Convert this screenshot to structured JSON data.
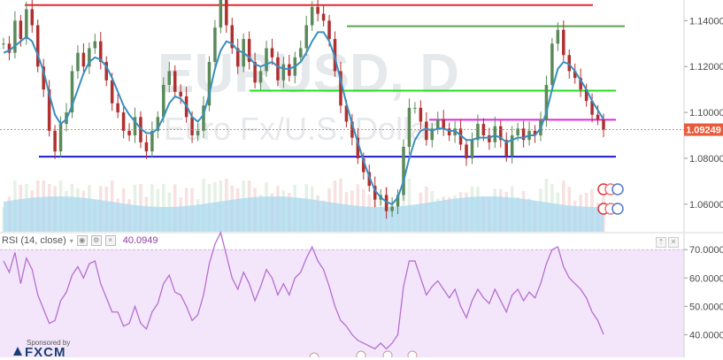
{
  "watermark": {
    "symbol": "EURUSD, D",
    "description": "Euro Fx/U.S. Dollar"
  },
  "colors": {
    "resistance_top": "#e8262c",
    "green_dark": "#5aa24e",
    "green_light": "#21e01e",
    "magenta": "#e02ae0",
    "support": "#1a1ad6",
    "ma_line": "#3a8fbf",
    "up_candle": "#5a8a5a",
    "down_candle": "#b03030",
    "volume_area": "#aad8ef",
    "rsi_line": "#b56fd0",
    "rsi_band": "#f3e6fb",
    "price_badge": "#e85a3a"
  },
  "price_axis": {
    "ticks": [
      "1.14000",
      "1.12000",
      "1.10000",
      "1.08000",
      "1.06000"
    ],
    "current_price": "1.09249"
  },
  "rsi_panel": {
    "label": "RSI (14, close)",
    "value": "40.0949",
    "ticks": [
      "70.0000",
      "60.0000",
      "50.0000",
      "40.0000"
    ]
  },
  "sponsor": {
    "label": "Sponsored by",
    "name": "FXCM"
  },
  "chart_data": {
    "type": "line",
    "title": "EURUSD, D",
    "subtitle": "Euro Fx/U.S. Dollar",
    "ylim": [
      1.048,
      1.149
    ],
    "horizontal_levels": [
      {
        "price": 1.1468,
        "color": "#e8262c"
      },
      {
        "price": 1.1376,
        "color": "#5aa24e"
      },
      {
        "price": 1.1095,
        "color": "#21e01e"
      },
      {
        "price": 1.0968,
        "color": "#e02ae0"
      },
      {
        "price": 1.0807,
        "color": "#1a1ad6"
      }
    ],
    "series": [
      {
        "values": [
          1.13,
          1.126,
          1.14,
          1.132,
          1.145,
          1.138,
          1.12,
          1.11,
          1.092,
          1.083,
          1.095,
          1.1,
          1.118,
          1.126,
          1.12,
          1.128,
          1.131,
          1.122,
          1.114,
          1.104,
          1.1,
          1.092,
          1.09,
          1.098,
          1.087,
          1.083,
          1.092,
          1.098,
          1.112,
          1.118,
          1.109,
          1.107,
          1.098,
          1.09,
          1.092,
          1.103,
          1.122,
          1.137,
          1.15,
          1.138,
          1.128,
          1.12,
          1.132,
          1.122,
          1.113,
          1.118,
          1.128,
          1.124,
          1.114,
          1.121,
          1.116,
          1.124,
          1.128,
          1.138,
          1.146,
          1.143,
          1.14,
          1.132,
          1.118,
          1.103,
          1.096,
          1.089,
          1.08,
          1.074,
          1.068,
          1.062,
          1.064,
          1.057,
          1.059,
          1.064,
          1.085,
          1.102,
          1.102,
          1.096,
          1.088,
          1.093,
          1.097,
          1.093,
          1.09,
          1.093,
          1.086,
          1.08,
          1.088,
          1.095,
          1.09,
          1.087,
          1.094,
          1.088,
          1.081,
          1.09,
          1.093,
          1.088,
          1.092,
          1.09,
          1.097,
          1.112,
          1.13,
          1.136,
          1.125,
          1.118,
          1.115,
          1.11,
          1.105,
          1.099,
          1.097,
          1.09249
        ]
      },
      {
        "values": [
          1.126,
          1.127,
          1.129,
          1.131,
          1.133,
          1.131,
          1.125,
          1.118,
          1.108,
          1.099,
          1.095,
          1.097,
          1.103,
          1.11,
          1.117,
          1.122,
          1.124,
          1.123,
          1.12,
          1.115,
          1.109,
          1.103,
          1.099,
          1.096,
          1.093,
          1.091,
          1.091,
          1.093,
          1.098,
          1.104,
          1.107,
          1.106,
          1.103,
          1.098,
          1.096,
          1.099,
          1.108,
          1.119,
          1.127,
          1.131,
          1.13,
          1.127,
          1.126,
          1.124,
          1.121,
          1.12,
          1.121,
          1.122,
          1.12,
          1.119,
          1.119,
          1.12,
          1.122,
          1.126,
          1.131,
          1.135,
          1.135,
          1.131,
          1.124,
          1.114,
          1.104,
          1.095,
          1.087,
          1.079,
          1.072,
          1.066,
          1.063,
          1.061,
          1.06,
          1.063,
          1.07,
          1.08,
          1.088,
          1.092,
          1.093,
          1.092,
          1.093,
          1.093,
          1.092,
          1.092,
          1.09,
          1.088,
          1.088,
          1.089,
          1.089,
          1.089,
          1.09,
          1.089,
          1.087,
          1.088,
          1.089,
          1.089,
          1.09,
          1.09,
          1.093,
          1.1,
          1.11,
          1.119,
          1.122,
          1.121,
          1.118,
          1.114,
          1.11,
          1.105,
          1.101,
          1.097
        ]
      }
    ],
    "rsi": {
      "ylim": [
        32,
        76
      ],
      "overbought": 70,
      "values": [
        66,
        62,
        69,
        58,
        67,
        63,
        54,
        49,
        44,
        45,
        52,
        55,
        61,
        64,
        60,
        65,
        66,
        58,
        53,
        48,
        48,
        43,
        44,
        50,
        44,
        42,
        48,
        51,
        58,
        61,
        55,
        54,
        50,
        45,
        47,
        54,
        65,
        72,
        76,
        68,
        60,
        56,
        62,
        58,
        52,
        57,
        63,
        60,
        54,
        58,
        54,
        60,
        62,
        67,
        71,
        66,
        63,
        57,
        50,
        45,
        43,
        40,
        38,
        37,
        36,
        35,
        37,
        35,
        37,
        40,
        57,
        66,
        66,
        60,
        54,
        57,
        59,
        56,
        53,
        56,
        50,
        46,
        52,
        56,
        53,
        51,
        56,
        52,
        48,
        54,
        56,
        52,
        55,
        53,
        58,
        65,
        70,
        71,
        64,
        60,
        58,
        56,
        53,
        48,
        45,
        40.09
      ]
    }
  }
}
